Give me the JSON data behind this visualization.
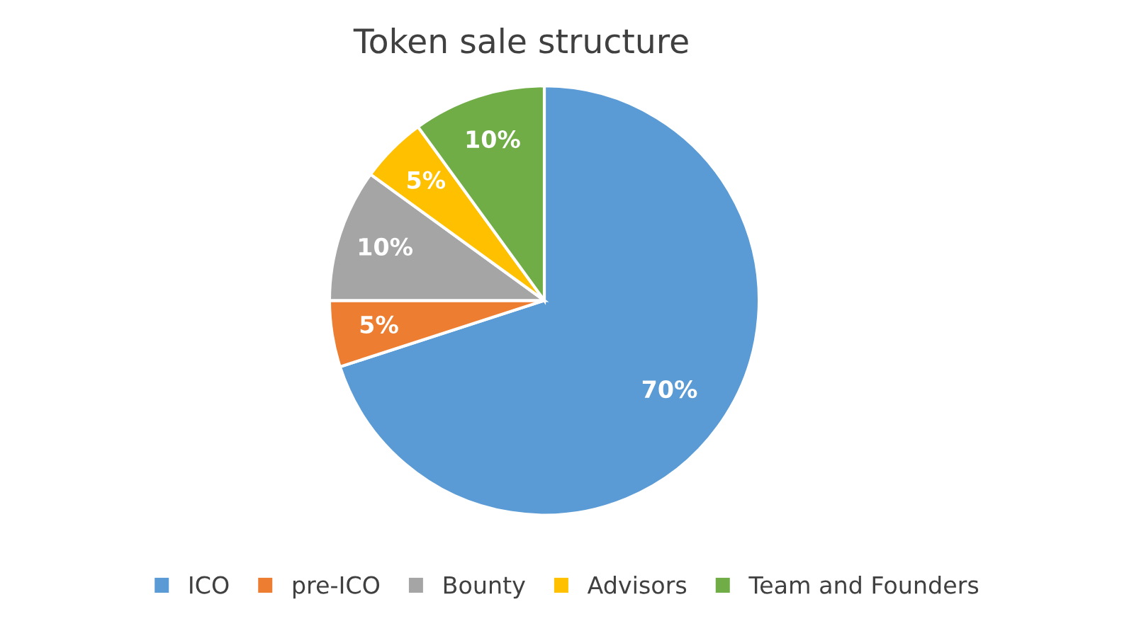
{
  "chart_data": {
    "type": "pie",
    "title": "Token sale structure",
    "categories": [
      "ICO",
      "pre-ICO",
      "Bounty",
      "Advisors",
      "Team and Founders"
    ],
    "values": [
      70,
      5,
      10,
      5,
      10
    ],
    "colors": [
      "#5b9bd5",
      "#ed7d31",
      "#a5a5a5",
      "#ffc000",
      "#70ad47"
    ],
    "value_labels": [
      "70%",
      "5%",
      "10%",
      "5%",
      "10%"
    ],
    "legend": "bottom"
  }
}
